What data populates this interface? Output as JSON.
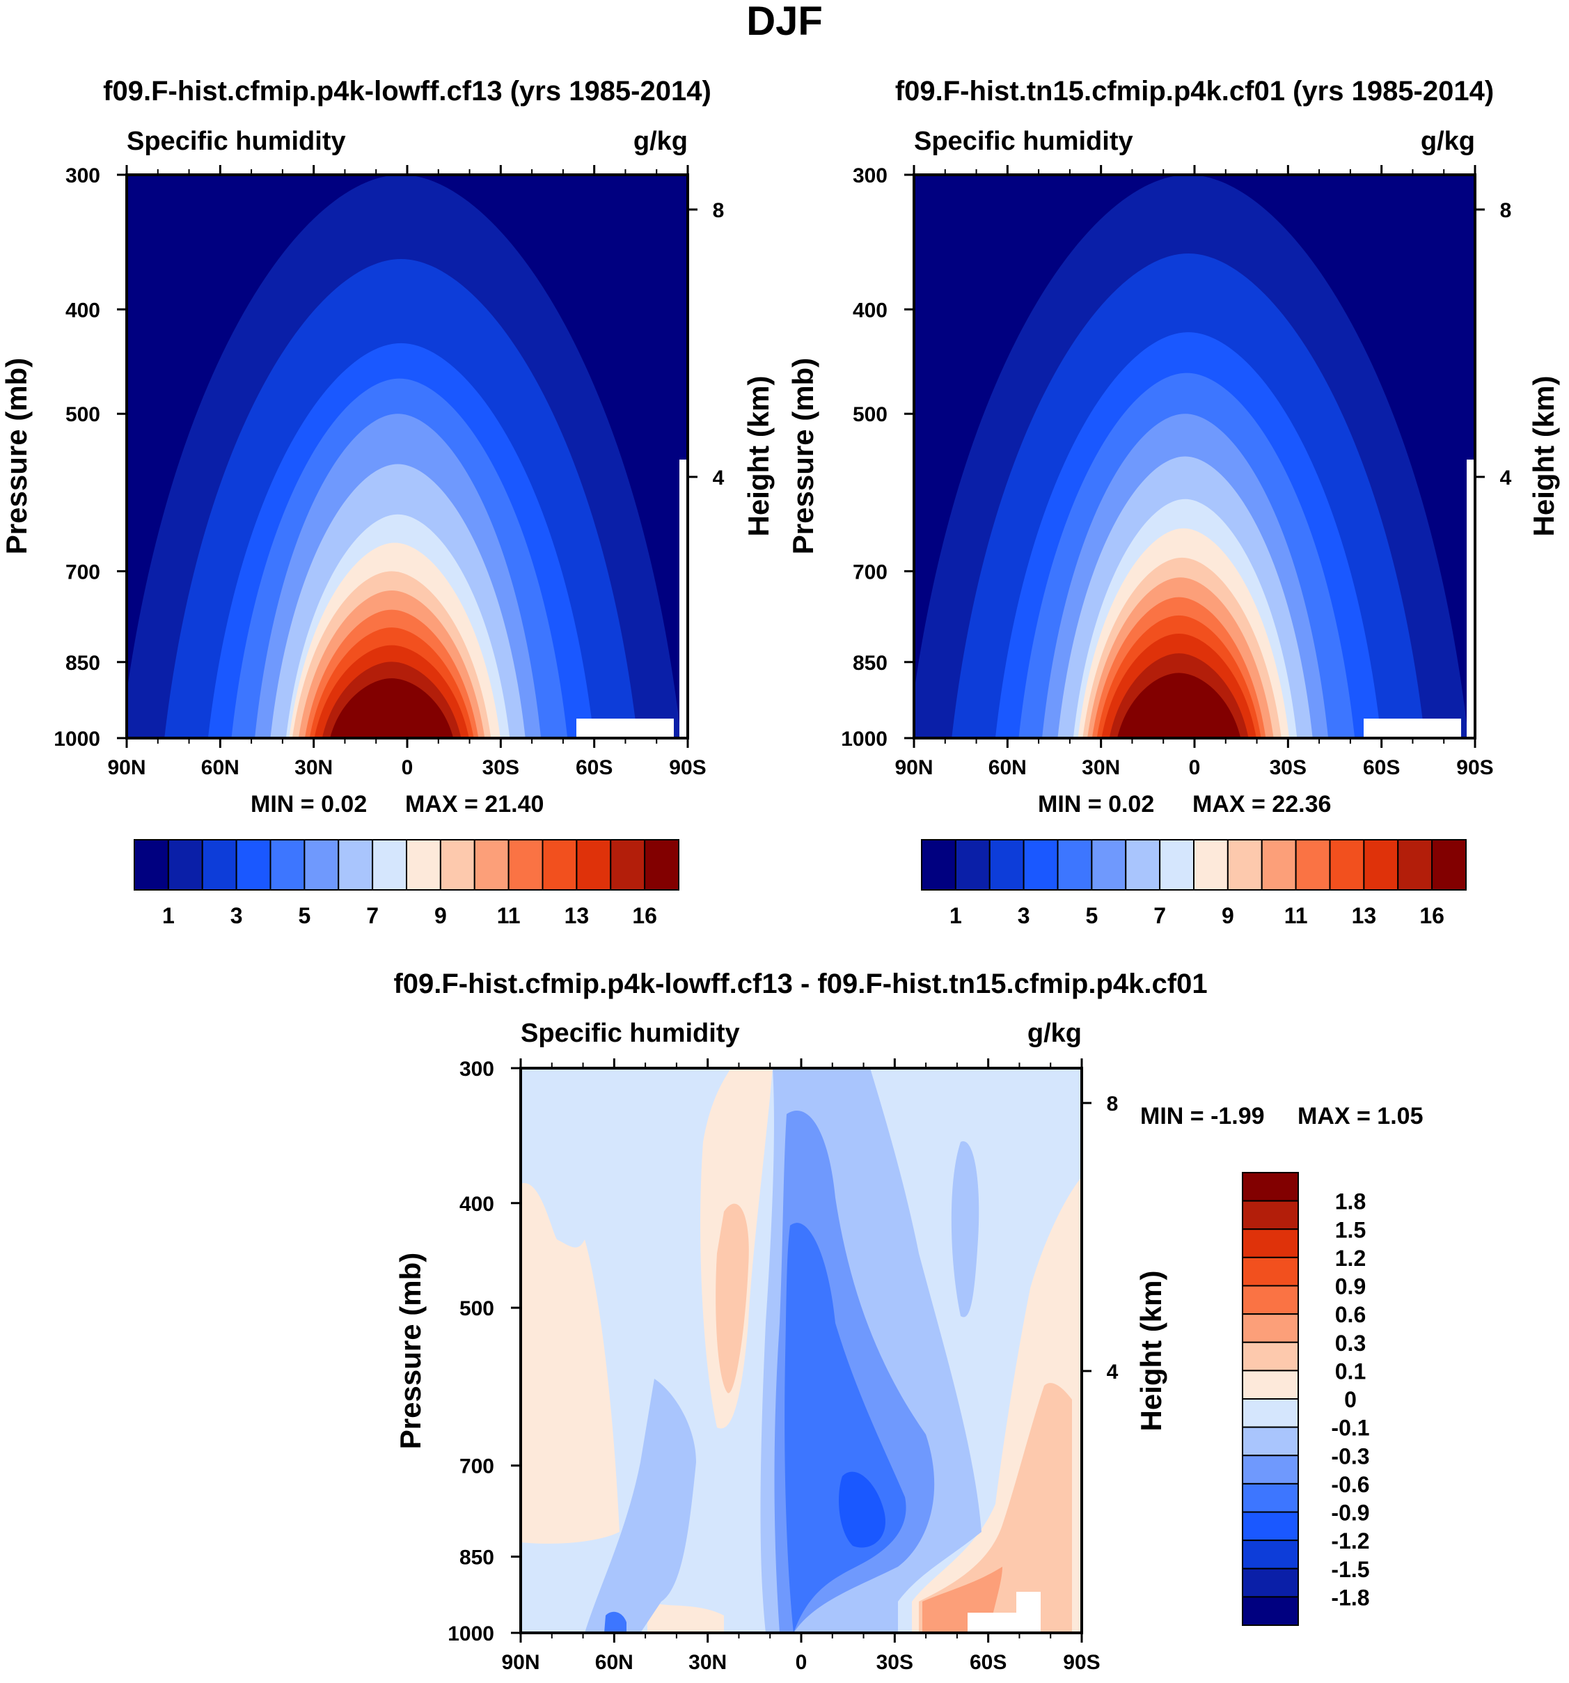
{
  "main_title": "DJF",
  "colors": {
    "abs_levels": [
      "#000080",
      "#0a1fa8",
      "#0d3dd9",
      "#1a58ff",
      "#3d76ff",
      "#6f99fd",
      "#a9c5fd",
      "#d5e6fd",
      "#fde9da",
      "#fdc9ad",
      "#fc9f79",
      "#fa7344",
      "#f2501e",
      "#df320a",
      "#b31e0a",
      "#820000"
    ],
    "diff_levels": [
      "#000080",
      "#0a1fa8",
      "#0d3dd9",
      "#1a58ff",
      "#3d76ff",
      "#6f99fd",
      "#a9c5fd",
      "#d5e6fd",
      "#fde9da",
      "#fdc9ad",
      "#fc9f79",
      "#fa7344",
      "#f2501e",
      "#df320a",
      "#b31e0a",
      "#820000"
    ]
  },
  "chart_data": [
    {
      "type": "heatmap",
      "title": "f09.F-hist.cfmip.p4k-lowff.cf13 (yrs 1985-2014)",
      "left_string": "Specific humidity",
      "right_string": "g/kg",
      "ylabel": "Pressure (mb)",
      "ylabel_right": "Height (km)",
      "x_ticks": [
        "90N",
        "60N",
        "30N",
        "0",
        "30S",
        "60S",
        "90S"
      ],
      "y_ticks": [
        "300",
        "400",
        "500",
        "700",
        "850",
        "1000"
      ],
      "height_ticks": [
        "8",
        "4"
      ],
      "ylim": [
        1000,
        300
      ],
      "min_label": "MIN =   0.02",
      "max_label": "MAX =  21.40",
      "min": 0.02,
      "max": 21.4,
      "colorbar_labels": [
        "1",
        "3",
        "5",
        "7",
        "9",
        "11",
        "13",
        "16"
      ],
      "contours": [
        {
          "level": 1,
          "top": 300,
          "center_lat": 2,
          "half_width_deg": 90
        },
        {
          "level": 3,
          "top": 430,
          "center_lat": 2,
          "half_width_deg": 62
        },
        {
          "level": 5,
          "top": 500,
          "center_lat": 3,
          "half_width_deg": 46
        },
        {
          "level": 7,
          "top": 620,
          "center_lat": 3,
          "half_width_deg": 36
        },
        {
          "level": 9,
          "top": 700,
          "center_lat": 5,
          "half_width_deg": 32
        },
        {
          "level": 11,
          "top": 760,
          "center_lat": 5,
          "half_width_deg": 28
        },
        {
          "level": 13,
          "top": 820,
          "center_lat": 5,
          "half_width_deg": 25
        },
        {
          "level": 16,
          "top": 880,
          "center_lat": 5,
          "half_width_deg": 20
        }
      ]
    },
    {
      "type": "heatmap",
      "title": "f09.F-hist.tn15.cfmip.p4k.cf01 (yrs 1985-2014)",
      "left_string": "Specific humidity",
      "right_string": "g/kg",
      "ylabel": "Pressure (mb)",
      "ylabel_right": "Height (km)",
      "x_ticks": [
        "90N",
        "60N",
        "30N",
        "0",
        "30S",
        "60S",
        "90S"
      ],
      "y_ticks": [
        "300",
        "400",
        "500",
        "700",
        "850",
        "1000"
      ],
      "height_ticks": [
        "8",
        "4"
      ],
      "ylim": [
        1000,
        300
      ],
      "min_label": "MIN =   0.02",
      "max_label": "MAX =  22.36",
      "min": 0.02,
      "max": 22.36,
      "colorbar_labels": [
        "1",
        "3",
        "5",
        "7",
        "9",
        "11",
        "13",
        "16"
      ],
      "contours": [
        {
          "level": 1,
          "top": 300,
          "center_lat": 2,
          "half_width_deg": 90
        },
        {
          "level": 3,
          "top": 420,
          "center_lat": 2,
          "half_width_deg": 62
        },
        {
          "level": 5,
          "top": 500,
          "center_lat": 3,
          "half_width_deg": 46
        },
        {
          "level": 7,
          "top": 600,
          "center_lat": 3,
          "half_width_deg": 36
        },
        {
          "level": 9,
          "top": 680,
          "center_lat": 4,
          "half_width_deg": 32
        },
        {
          "level": 11,
          "top": 740,
          "center_lat": 5,
          "half_width_deg": 28
        },
        {
          "level": 13,
          "top": 800,
          "center_lat": 5,
          "half_width_deg": 25
        },
        {
          "level": 16,
          "top": 870,
          "center_lat": 5,
          "half_width_deg": 20
        }
      ]
    },
    {
      "type": "heatmap",
      "title": "f09.F-hist.cfmip.p4k-lowff.cf13 - f09.F-hist.tn15.cfmip.p4k.cf01",
      "left_string": "Specific humidity",
      "right_string": "g/kg",
      "ylabel": "Pressure (mb)",
      "ylabel_right": "Height (km)",
      "x_ticks": [
        "90N",
        "60N",
        "30N",
        "0",
        "30S",
        "60S",
        "90S"
      ],
      "y_ticks": [
        "300",
        "400",
        "500",
        "700",
        "850",
        "1000"
      ],
      "height_ticks": [
        "8",
        "4"
      ],
      "ylim": [
        1000,
        300
      ],
      "min_label": "MIN =  -1.99",
      "max_label": "MAX =    1.05",
      "min": -1.99,
      "max": 1.05,
      "colorbar_labels": [
        "1.8",
        "1.5",
        "1.2",
        "0.9",
        "0.6",
        "0.3",
        "0.1",
        "0",
        "-0.1",
        "-0.3",
        "-0.6",
        "-0.9",
        "-1.2",
        "-1.5",
        "-1.8"
      ]
    }
  ]
}
